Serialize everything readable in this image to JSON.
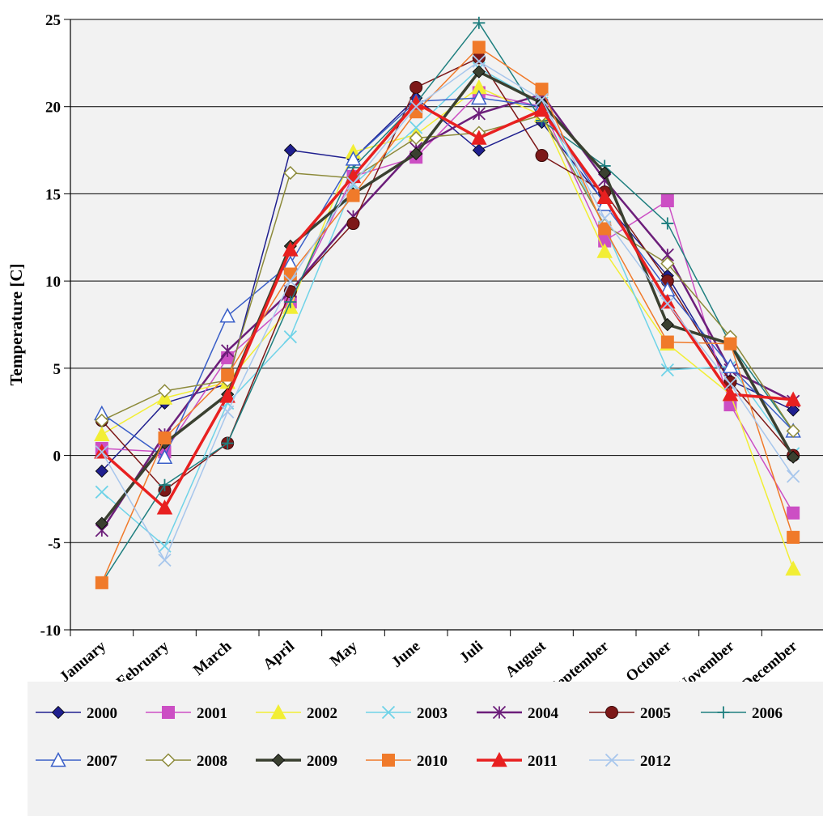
{
  "chart_data": {
    "type": "line",
    "title": "",
    "xlabel": "",
    "ylabel": "Temperature [C]",
    "ylim": [
      -10,
      25
    ],
    "yticks": [
      -10,
      -5,
      0,
      5,
      10,
      15,
      20,
      25
    ],
    "ytick_labels": [
      "-10",
      "-5",
      "0",
      "5",
      "10",
      "15",
      "20",
      "25"
    ],
    "grid": "horizontal",
    "legend_position": "bottom",
    "categories": [
      "January",
      "February",
      "March",
      "April",
      "May",
      "June",
      "Juli",
      "August",
      "September",
      "October",
      "November",
      "December"
    ],
    "series": [
      {
        "name": "2000",
        "color": "#1f1f8f",
        "marker": "diamond-filled",
        "width": 1.5,
        "values": [
          -0.9,
          3.0,
          4.1,
          17.5,
          17.0,
          20.5,
          17.5,
          19.1,
          14.5,
          10.3,
          4.3,
          2.6
        ]
      },
      {
        "name": "2001",
        "color": "#cc4fc4",
        "marker": "square-filled",
        "width": 1.5,
        "values": [
          0.4,
          0.2,
          5.6,
          8.8,
          16.0,
          17.1,
          20.8,
          20.0,
          12.3,
          14.6,
          2.9,
          -3.3
        ]
      },
      {
        "name": "2002",
        "color": "#f2ee34",
        "marker": "triangle-filled",
        "width": 1.5,
        "values": [
          1.2,
          3.3,
          4.2,
          8.5,
          17.4,
          18.4,
          21.1,
          19.5,
          11.7,
          6.4,
          3.5,
          -6.5
        ]
      },
      {
        "name": "2003",
        "color": "#6fd3e8",
        "marker": "x",
        "width": 1.5,
        "values": [
          -2.1,
          -5.2,
          3.0,
          6.8,
          15.5,
          18.8,
          22.2,
          20.2,
          13.1,
          4.9,
          5.1,
          0.1
        ]
      },
      {
        "name": "2004",
        "color": "#6c1e7a",
        "marker": "asterisk",
        "width": 2.5,
        "values": [
          -4.3,
          1.2,
          6.0,
          9.4,
          13.7,
          17.6,
          19.6,
          20.7,
          15.8,
          11.5,
          4.9,
          3.1
        ]
      },
      {
        "name": "2005",
        "color": "#7d1818",
        "marker": "circle-filled",
        "width": 1.5,
        "values": [
          2.0,
          -2.0,
          0.7,
          9.4,
          13.3,
          21.1,
          22.8,
          17.2,
          15.1,
          10.0,
          4.2,
          0.0
        ]
      },
      {
        "name": "2006",
        "color": "#1e7f7f",
        "marker": "plus",
        "width": 1.5,
        "values": [
          -7.3,
          -1.7,
          0.7,
          8.8,
          16.5,
          20.2,
          24.8,
          19.2,
          16.6,
          13.3,
          6.4,
          1.4
        ]
      },
      {
        "name": "2007",
        "color": "#3a5fc8",
        "marker": "triangle-open",
        "width": 1.5,
        "values": [
          2.4,
          -0.1,
          8.0,
          11.0,
          17.0,
          20.3,
          20.5,
          20.0,
          14.4,
          9.5,
          5.1,
          1.4
        ]
      },
      {
        "name": "2008",
        "color": "#8c8a3a",
        "marker": "diamond-open",
        "width": 1.5,
        "values": [
          2.0,
          3.7,
          4.3,
          16.2,
          15.9,
          18.2,
          18.5,
          19.5,
          13.2,
          11.0,
          6.8,
          1.4
        ]
      },
      {
        "name": "2009",
        "color": "#3a4030",
        "marker": "diamond-filled",
        "width": 3.5,
        "values": [
          -3.9,
          0.7,
          3.5,
          12.0,
          15.0,
          17.3,
          22.0,
          20.2,
          16.2,
          7.5,
          6.4,
          -0.1
        ]
      },
      {
        "name": "2010",
        "color": "#f07a2a",
        "marker": "square-filled",
        "width": 1.5,
        "values": [
          -7.3,
          1.0,
          4.6,
          10.4,
          14.9,
          19.7,
          23.4,
          21.0,
          13.0,
          6.5,
          6.4,
          -4.7
        ]
      },
      {
        "name": "2011",
        "color": "#e82020",
        "marker": "triangle-filled",
        "width": 3.5,
        "values": [
          0.2,
          -3.0,
          3.4,
          11.8,
          16.0,
          20.2,
          18.2,
          19.8,
          14.8,
          8.8,
          3.5,
          3.2
        ]
      },
      {
        "name": "2012",
        "color": "#a7c6ec",
        "marker": "x",
        "width": 1.5,
        "values": [
          0.2,
          -6.0,
          2.5,
          10.0,
          15.6,
          20.0,
          22.6,
          20.4,
          13.6,
          8.7,
          4.1,
          -1.2
        ]
      }
    ]
  }
}
